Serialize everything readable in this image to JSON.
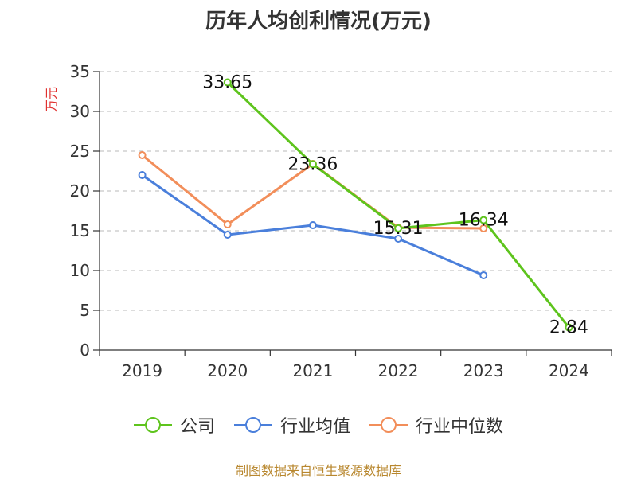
{
  "chart_data": {
    "type": "line",
    "title": "历年人均创利情况(万元)",
    "ylabel": "万元",
    "categories": [
      "2019",
      "2020",
      "2021",
      "2022",
      "2023",
      "2024"
    ],
    "ylim": [
      0,
      35
    ],
    "yticks": [
      0,
      5,
      10,
      15,
      20,
      25,
      30,
      35
    ],
    "grid": true,
    "legend_position": "bottom",
    "series": [
      {
        "name": "公司",
        "color": "#5ec41d",
        "values": [
          null,
          33.65,
          23.36,
          15.31,
          16.34,
          2.84
        ],
        "labels": [
          "",
          "33.65",
          "23.36",
          "15.31",
          "16.34",
          "2.84"
        ]
      },
      {
        "name": "行业均值",
        "color": "#4a7fdb",
        "values": [
          22.0,
          14.5,
          15.7,
          14.0,
          9.4,
          null
        ],
        "labels": [
          "",
          "",
          "",
          "",
          "",
          ""
        ]
      },
      {
        "name": "行业中位数",
        "color": "#f28e5a",
        "values": [
          24.5,
          15.8,
          23.4,
          15.4,
          15.3,
          null
        ],
        "labels": [
          "",
          "",
          "",
          "",
          "",
          ""
        ]
      }
    ]
  },
  "source": "制图数据来自恒生聚源数据库"
}
